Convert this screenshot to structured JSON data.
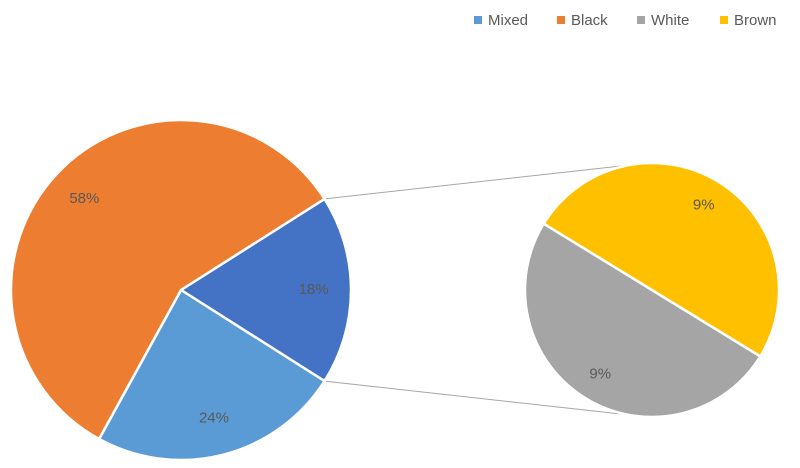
{
  "chart_data": {
    "type": "pie-of-pie",
    "categories": [
      "Mixed",
      "Black",
      "White",
      "Brown"
    ],
    "values": [
      24,
      58,
      9,
      9
    ],
    "value_labels": [
      "24%",
      "58%",
      "9%",
      "9%"
    ],
    "colors": [
      "#5b9bd5",
      "#ed7d31",
      "#a5a5a5",
      "#ffc000"
    ],
    "split_value": 18,
    "split_label": "18%",
    "split_color": "#4472c4",
    "legend": "top-right"
  }
}
